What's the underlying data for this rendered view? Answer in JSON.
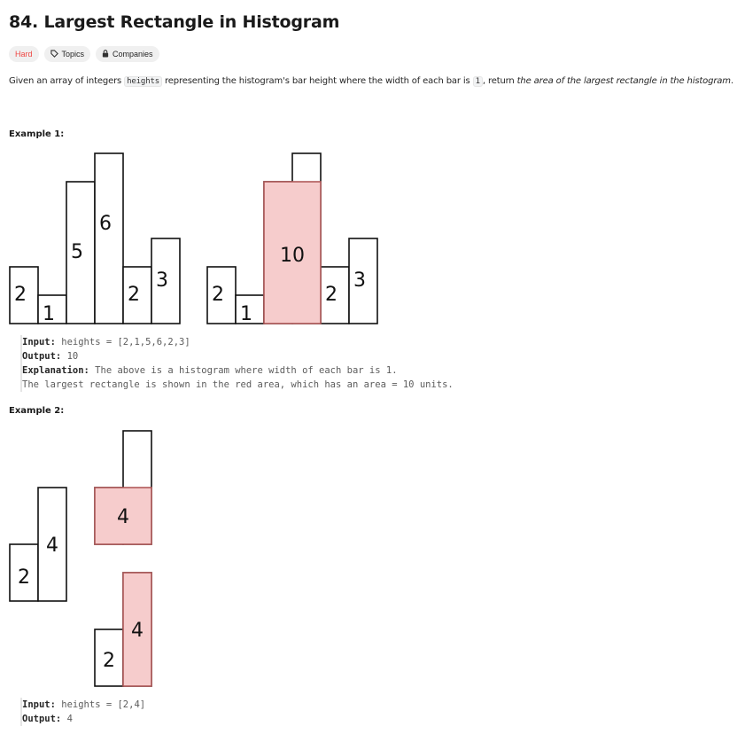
{
  "problem": {
    "title": "84. Largest Rectangle in Histogram",
    "difficulty": "Hard",
    "topics_label": "Topics",
    "companies_label": "Companies",
    "desc_prefix": "Given an array of integers ",
    "desc_code1": "heights",
    "desc_mid": " representing the histogram's bar height where the width of each bar is ",
    "desc_code2": "1",
    "desc_mid2": ", return ",
    "desc_em": "the area of the largest rectangle in the histogram",
    "desc_end": "."
  },
  "example1": {
    "label": "Example 1:",
    "heights": [
      2,
      1,
      5,
      6,
      2,
      3
    ],
    "max_area": 10,
    "input_key": "Input:",
    "input_val": " heights = [2,1,5,6,2,3]",
    "output_key": "Output:",
    "output_val": " 10",
    "explanation_key": "Explanation:",
    "explanation_val": " The above is a histogram where width of each bar is 1.",
    "explanation_line2": "The largest rectangle is shown in the red area, which has an area = 10 units."
  },
  "example2": {
    "label": "Example 2:",
    "heights": [
      2,
      4
    ],
    "top_area": "4",
    "bottom_area": "4",
    "input_key": "Input:",
    "input_val": " heights = [2,4]",
    "output_key": "Output:",
    "output_val": " 4"
  },
  "colors": {
    "highlight": "#f6cccc",
    "highlight_border": "#b05a5a",
    "hard": "#ef4743"
  }
}
